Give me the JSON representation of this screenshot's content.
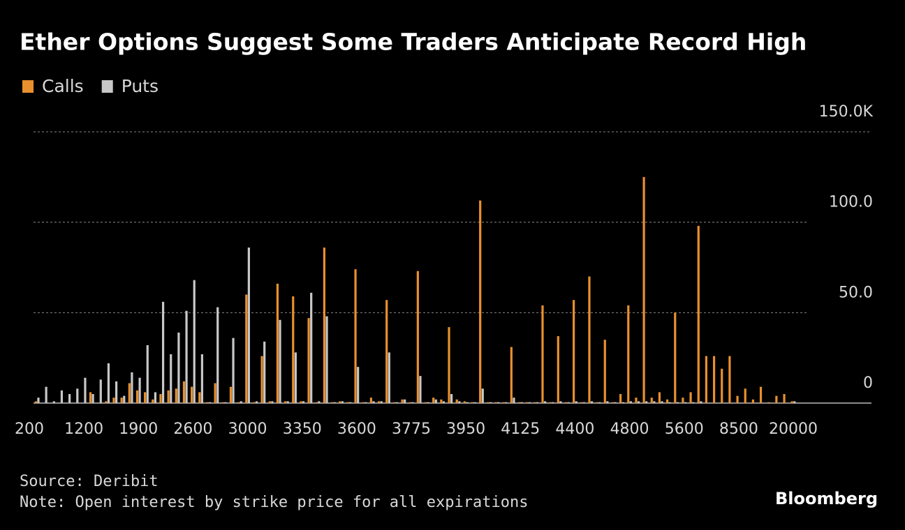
{
  "chart_data": {
    "type": "bar",
    "title": "Ether Options Suggest Some Traders Anticipate Record High",
    "source": "Source: Deribit",
    "note": "Note: Open interest by strike price for all expirations",
    "brand": "Bloomberg",
    "categories": [
      "200",
      null,
      null,
      null,
      null,
      null,
      null,
      "1200",
      null,
      null,
      null,
      null,
      null,
      null,
      "1900",
      null,
      null,
      null,
      null,
      null,
      null,
      "2600",
      null,
      null,
      null,
      null,
      null,
      null,
      "3000",
      null,
      null,
      null,
      null,
      null,
      null,
      "3350",
      null,
      null,
      null,
      null,
      null,
      null,
      "3600",
      null,
      null,
      null,
      null,
      null,
      null,
      "3775",
      null,
      null,
      null,
      null,
      null,
      null,
      "3950",
      null,
      null,
      null,
      null,
      null,
      null,
      "4125",
      null,
      null,
      null,
      null,
      null,
      null,
      "4400",
      null,
      null,
      null,
      null,
      null,
      null,
      "4800",
      null,
      null,
      null,
      null,
      null,
      null,
      "5600",
      null,
      null,
      null,
      null,
      null,
      null,
      "8500",
      null,
      null,
      null,
      null,
      null,
      null,
      "20000"
    ],
    "series": [
      {
        "name": "Calls",
        "color": "#e8902e",
        "values": [
          0,
          1,
          0,
          0,
          0,
          0,
          0,
          0,
          6,
          0,
          1,
          3,
          3,
          11,
          7,
          6,
          2,
          5,
          7,
          8,
          12,
          9,
          6,
          0.5,
          11,
          0.5,
          9,
          0.5,
          60,
          0.5,
          26,
          1,
          66,
          1,
          59,
          1,
          47,
          0.5,
          86,
          0.5,
          1,
          0.5,
          74,
          0.5,
          3,
          1,
          57,
          0.5,
          2,
          0.5,
          73,
          0.5,
          3,
          2,
          42,
          2,
          1,
          0.5,
          112,
          0.5,
          0.5,
          0.5,
          31,
          0.5,
          0.5,
          0.5,
          54,
          0.5,
          37,
          0.5,
          57,
          0.5,
          70,
          0.5,
          35,
          0.5,
          5,
          54,
          3,
          125,
          3,
          6,
          2,
          50,
          3,
          6,
          98,
          26,
          26,
          19,
          26,
          4,
          8,
          2,
          9,
          0.5,
          4,
          5,
          1
        ]
      },
      {
        "name": "Puts",
        "color": "#c8c8c8",
        "values": [
          0,
          3,
          9,
          1,
          7,
          5,
          8,
          14,
          5,
          13,
          22,
          12,
          4,
          17,
          14,
          32,
          6,
          56,
          27,
          39,
          51,
          68,
          27,
          0.5,
          53,
          0.5,
          36,
          1,
          86,
          1,
          34,
          1,
          46,
          1,
          28,
          1,
          61,
          1,
          48,
          0.5,
          1,
          0.5,
          20,
          0.5,
          1,
          1,
          28,
          0.5,
          2,
          0.5,
          15,
          0.5,
          2,
          1,
          5,
          1,
          0.5,
          0.5,
          8,
          0.5,
          0.5,
          0.5,
          3,
          0.5,
          0.5,
          0.5,
          1,
          0.5,
          1,
          0.5,
          1,
          0.5,
          1,
          0.5,
          1,
          0.5,
          0.5,
          1,
          1,
          1,
          1,
          1,
          0.5,
          0.5,
          0.5,
          0.5,
          1,
          0,
          0,
          0,
          0,
          0,
          0,
          0,
          0,
          0,
          0,
          0,
          1
        ]
      }
    ],
    "ylim": [
      0,
      150
    ],
    "yticks": [
      0,
      {
        "value": 50,
        "label": "50.0"
      },
      {
        "value": 100,
        "label": "100.0"
      },
      {
        "value": 150,
        "label": "150.0K"
      }
    ],
    "grid": true,
    "legend": "top-left"
  }
}
